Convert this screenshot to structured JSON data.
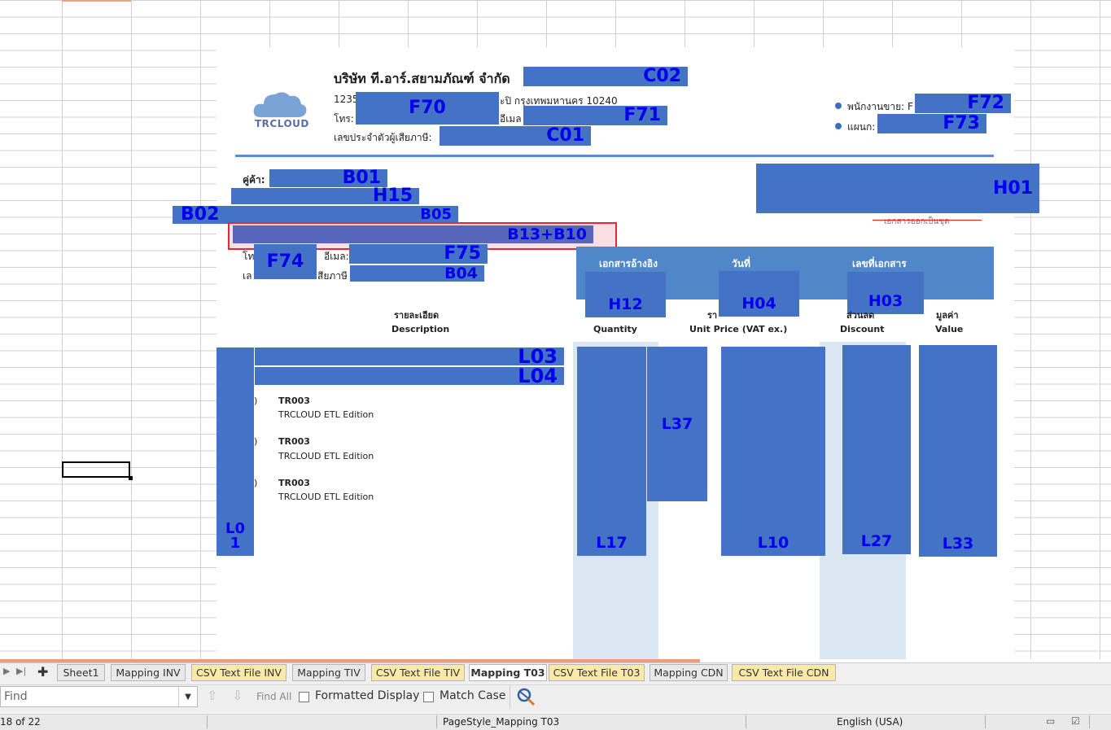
{
  "doc": {
    "company_name": "บริษัท ที.อาร์.สยามภัณฑ์ จำกัด",
    "addr_prefix": "1235",
    "addr_suffix": "ะปิ กรุงเทพมหานคร 10240",
    "phone_label": "โทร:",
    "email_label": "อีเมล",
    "taxid_label": "เลขประจำตัวผู้เสียภาษี:",
    "logo_text": "TRCLOUD",
    "sales_label": "พนักงานขาย: F",
    "dept_label": "แผนก:",
    "customer_label": "คู่ค้า: ‹",
    "cust_phone_label": "โท",
    "cust_email_label": "อีเมล:",
    "cust_tax_label": "เล",
    "cust_tax_suffix": "สียภาษี",
    "issued_as_set": "เอกสารออกเป็นชุด",
    "ref_labels": [
      "เอกสารอ้างอิง",
      "วันที่",
      "เลขที่เอกสาร"
    ],
    "col_desc_th": "รายละเอียด",
    "col_desc_en": "Description",
    "col_qty": "Quantity",
    "col_unit_th": "รา",
    "col_unit_en": "Unit Price (VAT ex.)",
    "col_disc_th": "ส่วนลด",
    "col_disc_en": "Discount",
    "col_value_th": "มูลค่า",
    "col_value_en": "Value",
    "items": [
      {
        "paren": ")",
        "code": "TR003",
        "name": "TRCLOUD ETL Edition"
      },
      {
        "paren": ")",
        "code": "TR003",
        "name": "TRCLOUD ETL Edition"
      },
      {
        "paren": ")",
        "code": "TR003",
        "name": "TRCLOUD ETL Edition"
      }
    ]
  },
  "fields": {
    "C02": "C02",
    "F70": "F70",
    "F71": "F71",
    "C01": "C01",
    "F72": "F72",
    "F73": "F73",
    "H01": "H01",
    "B01": "B01",
    "H15": "H15",
    "B02": "B02",
    "B05": "B05",
    "B13B10": "B13+B10",
    "F74": "F74",
    "F75": "F75",
    "B04": "B04",
    "H12": "H12",
    "H04": "H04",
    "H03": "H03",
    "L03": "L03",
    "L04": "L04",
    "L01a": "L0",
    "L01b": "1",
    "L17": "L17",
    "L37": "L37",
    "L10": "L10",
    "L27": "L27",
    "L33": "L33"
  },
  "tabs": [
    {
      "label": "Sheet1",
      "style": "normal"
    },
    {
      "label": "Mapping INV",
      "style": "normal"
    },
    {
      "label": "CSV Text File INV",
      "style": "yellow"
    },
    {
      "label": "Mapping TIV",
      "style": "normal"
    },
    {
      "label": "CSV Text File TIV",
      "style": "yellow"
    },
    {
      "label": "Mapping T03",
      "style": "active"
    },
    {
      "label": "CSV Text File T03",
      "style": "yellow"
    },
    {
      "label": "Mapping CDN",
      "style": "normal"
    },
    {
      "label": "CSV Text File CDN",
      "style": "yellow"
    }
  ],
  "findbar": {
    "placeholder": "Find",
    "find_all": "Find All",
    "formatted_display": "Formatted Display",
    "match_case": "Match Case"
  },
  "status": {
    "sheet_pos": "18 of 22",
    "page_style": "PageStyle_Mapping T03",
    "language": "English (USA)"
  },
  "colors": {
    "field_block": "#4472c4",
    "field_text": "#0000ee",
    "header_band": "#4f87c9",
    "accent_line": "#5b8ed0"
  }
}
